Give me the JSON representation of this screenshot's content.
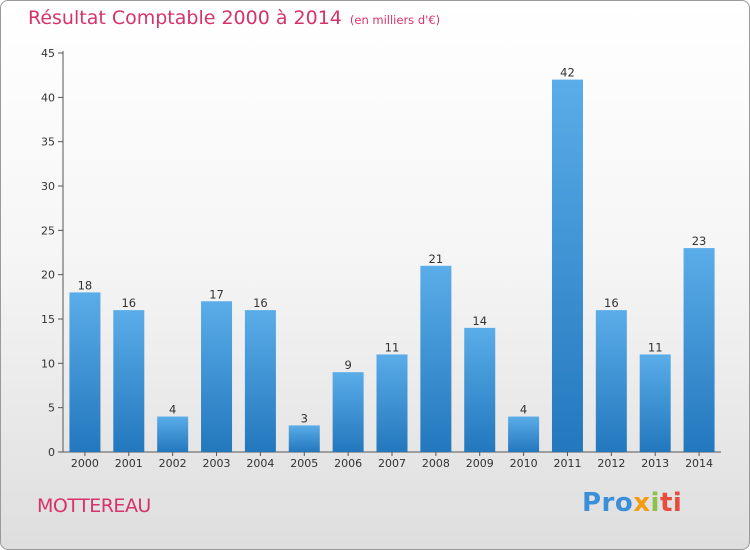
{
  "header": {
    "title": "Résultat Comptable 2000 à 2014",
    "subtitle": "(en milliers d'€)"
  },
  "footer": {
    "commune": "MOTTEREAU",
    "brand": [
      "Pro",
      "x",
      "i",
      "ti"
    ]
  },
  "colors": {
    "accent": "#d6336c",
    "bar_top": "#5aade8",
    "bar_bottom": "#2377bd"
  },
  "chart_data": {
    "type": "bar",
    "title": "Résultat Comptable 2000 à 2014",
    "subtitle": "(en milliers d'€)",
    "categories": [
      "2000",
      "2001",
      "2002",
      "2003",
      "2004",
      "2005",
      "2006",
      "2007",
      "2008",
      "2009",
      "2010",
      "2011",
      "2012",
      "2013",
      "2014"
    ],
    "values": [
      18,
      16,
      4,
      17,
      16,
      3,
      9,
      11,
      21,
      14,
      4,
      42,
      16,
      11,
      23
    ],
    "ylim": [
      0,
      45
    ],
    "yticks": [
      0,
      5,
      10,
      15,
      20,
      25,
      30,
      35,
      40,
      45
    ],
    "grid": false,
    "data_labels": true
  }
}
